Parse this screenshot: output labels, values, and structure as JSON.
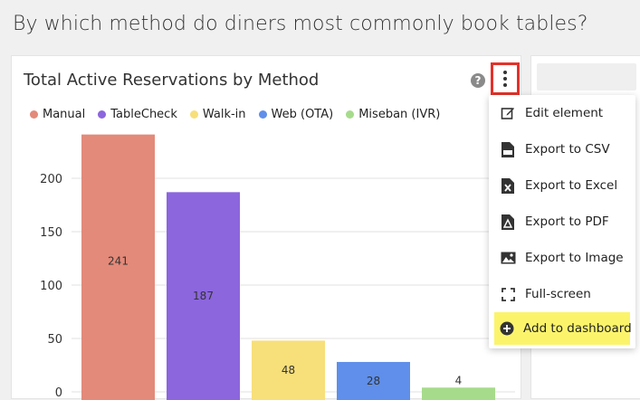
{
  "page": {
    "title": "By which method do diners most commonly book tables?"
  },
  "card": {
    "title": "Total Active Reservations by Method",
    "help_icon": "help-circle-icon",
    "menu_button_icon": "kebab-vertical-icon"
  },
  "colors": {
    "Manual": "#e38a7a",
    "TableCheck": "#8c66dd",
    "Walk-in": "#f7df7a",
    "Web (OTA)": "#5f8fea",
    "Miseban (IVR)": "#a6db8c",
    "highlight": "#fbf46b",
    "menu_button_border": "#e4312a"
  },
  "chart_data": {
    "type": "bar",
    "categories": [
      "Manual",
      "TableCheck",
      "Walk-in",
      "Web (OTA)",
      "Miseban (IVR)"
    ],
    "values": [
      241,
      187,
      48,
      28,
      4
    ],
    "ylim": [
      0,
      250
    ],
    "yticks": [
      "200",
      "150",
      "100",
      "50",
      "0"
    ],
    "legend": [
      "Manual",
      "TableCheck",
      "Walk-in",
      "Web (OTA)",
      "Miseban (IVR)"
    ],
    "legend_position": "top-left",
    "data_labels": [
      "241",
      "187",
      "48",
      "28",
      "4"
    ],
    "grid": true
  },
  "menu": {
    "items": [
      {
        "label": "Edit element",
        "icon": "edit-icon"
      },
      {
        "label": "Export to CSV",
        "icon": "csv-file-icon"
      },
      {
        "label": "Export to Excel",
        "icon": "excel-file-icon"
      },
      {
        "label": "Export to PDF",
        "icon": "pdf-file-icon"
      },
      {
        "label": "Export to Image",
        "icon": "image-icon"
      },
      {
        "label": "Full-screen",
        "icon": "fullscreen-icon"
      },
      {
        "label": "Add to dashboard",
        "icon": "add-circle-icon"
      }
    ]
  }
}
